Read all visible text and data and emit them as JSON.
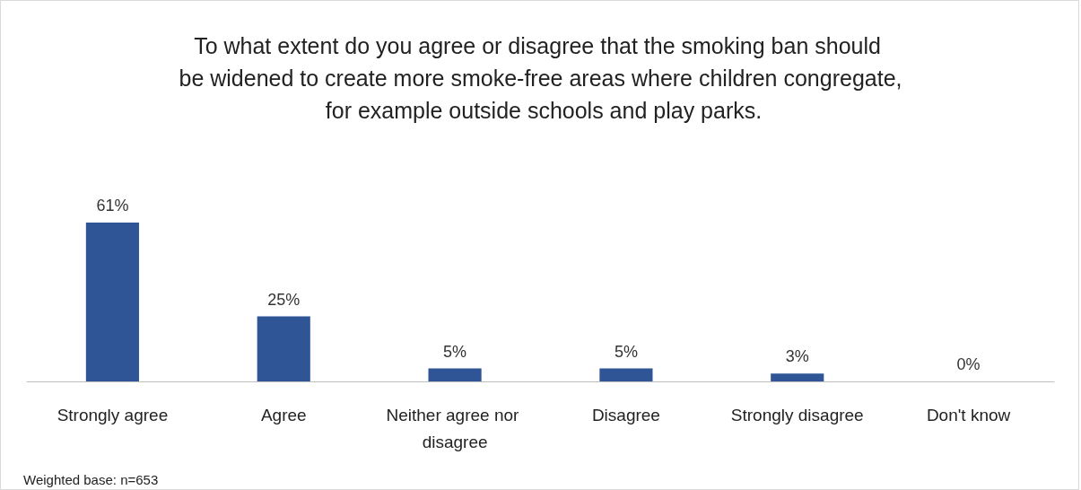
{
  "chart_data": {
    "type": "bar",
    "title": "To what extent do you agree or disagree that the smoking ban should be widened to create more smoke-free areas where children congregate, for example outside schools and play parks.",
    "categories": [
      "Strongly agree",
      "Agree",
      "Neither agree nor disagree",
      "Disagree",
      "Strongly disagree",
      "Don't know"
    ],
    "values": [
      61,
      25,
      5,
      5,
      3,
      0
    ],
    "value_labels": [
      "61%",
      "25%",
      "5%",
      "5%",
      "3%",
      "0%"
    ],
    "color": "#2f5597",
    "annotations": [
      "Weighted base: n=653"
    ]
  }
}
